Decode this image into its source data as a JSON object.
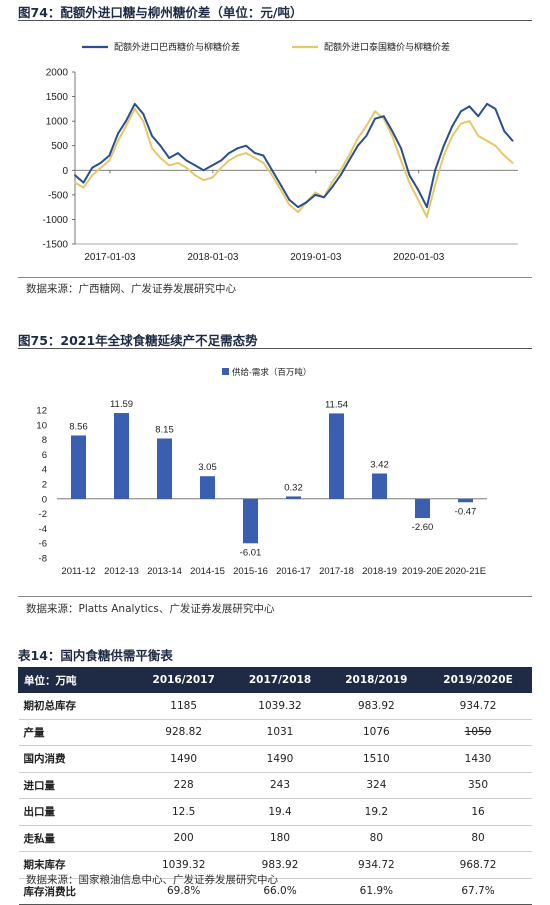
{
  "fig74": {
    "title": "图74：配额外进口糖与柳州糖价差（单位：元/吨）",
    "source": "数据来源：广西糖网、广发证券发展研究中心"
  },
  "fig75": {
    "title": "图75：2021年全球食糖延续产不足需态势",
    "source": "数据来源：Platts Analytics、广发证券发展研究中心"
  },
  "table14": {
    "title": "表14：国内食糖供需平衡表",
    "source": "数据来源：国家粮油信息中心、广发证券发展研究中心",
    "unit_label": "单位：万吨",
    "columns": [
      "2016/2017",
      "2017/2018",
      "2018/2019",
      "2019/2020E"
    ],
    "rows": [
      {
        "label": "期初总库存",
        "values": [
          "1185",
          "1039.32",
          "983.92",
          "934.72"
        ]
      },
      {
        "label": "产量",
        "values": [
          "928.82",
          "1031",
          "1076",
          "1050"
        ]
      },
      {
        "label": "国内消费",
        "values": [
          "1490",
          "1490",
          "1510",
          "1430"
        ]
      },
      {
        "label": "进口量",
        "values": [
          "228",
          "243",
          "324",
          "350"
        ]
      },
      {
        "label": "出口量",
        "values": [
          "12.5",
          "19.4",
          "19.2",
          "16"
        ]
      },
      {
        "label": "走私量",
        "values": [
          "200",
          "180",
          "80",
          "80"
        ]
      },
      {
        "label": "期末库存",
        "values": [
          "1039.32",
          "983.92",
          "934.72",
          "968.72"
        ]
      },
      {
        "label": "库存消费比",
        "values": [
          "69.8%",
          "66.0%",
          "61.9%",
          "67.7%"
        ]
      }
    ]
  },
  "chart_data": [
    {
      "type": "line",
      "x_ticks": [
        "2017-01-03",
        "2018-01-03",
        "2019-01-03",
        "2020-01-03"
      ],
      "ylim": [
        -1500,
        2000
      ],
      "y_ticks": [
        -1500,
        -1000,
        -500,
        0,
        500,
        1000,
        1500,
        2000
      ],
      "legend_position": "top",
      "series": [
        {
          "name": "配额外进口巴西糖价与柳糖价差",
          "color": "#2b4f8e",
          "points": [
            [
              "2016-09-01",
              -100
            ],
            [
              "2016-10-01",
              -250
            ],
            [
              "2016-11-01",
              50
            ],
            [
              "2016-12-01",
              150
            ],
            [
              "2017-01-01",
              300
            ],
            [
              "2017-02-01",
              750
            ],
            [
              "2017-03-01",
              1000
            ],
            [
              "2017-04-01",
              1350
            ],
            [
              "2017-05-01",
              1150
            ],
            [
              "2017-06-01",
              700
            ],
            [
              "2017-07-01",
              500
            ],
            [
              "2017-08-01",
              250
            ],
            [
              "2017-09-01",
              350
            ],
            [
              "2017-10-01",
              200
            ],
            [
              "2017-11-01",
              100
            ],
            [
              "2017-12-01",
              0
            ],
            [
              "2018-01-01",
              100
            ],
            [
              "2018-02-01",
              200
            ],
            [
              "2018-03-01",
              350
            ],
            [
              "2018-04-01",
              450
            ],
            [
              "2018-05-01",
              500
            ],
            [
              "2018-06-01",
              350
            ],
            [
              "2018-07-01",
              300
            ],
            [
              "2018-08-01",
              0
            ],
            [
              "2018-09-01",
              -300
            ],
            [
              "2018-10-01",
              -600
            ],
            [
              "2018-11-01",
              -750
            ],
            [
              "2018-12-01",
              -650
            ],
            [
              "2019-01-01",
              -500
            ],
            [
              "2019-02-01",
              -550
            ],
            [
              "2019-03-01",
              -350
            ],
            [
              "2019-04-01",
              -100
            ],
            [
              "2019-05-01",
              200
            ],
            [
              "2019-06-01",
              500
            ],
            [
              "2019-07-01",
              700
            ],
            [
              "2019-08-01",
              1050
            ],
            [
              "2019-09-01",
              1100
            ],
            [
              "2019-10-01",
              800
            ],
            [
              "2019-11-01",
              450
            ],
            [
              "2019-12-01",
              -100
            ],
            [
              "2020-01-01",
              -400
            ],
            [
              "2020-02-01",
              -750
            ],
            [
              "2020-03-01",
              0
            ],
            [
              "2020-04-01",
              500
            ],
            [
              "2020-05-01",
              900
            ],
            [
              "2020-06-01",
              1200
            ],
            [
              "2020-07-01",
              1300
            ],
            [
              "2020-08-01",
              1100
            ],
            [
              "2020-09-01",
              1350
            ],
            [
              "2020-10-01",
              1250
            ],
            [
              "2020-11-01",
              800
            ],
            [
              "2020-12-01",
              600
            ]
          ]
        },
        {
          "name": "配额外进口泰国糖价与柳糖价差",
          "color": "#e4c86a",
          "points": [
            [
              "2016-09-01",
              -250
            ],
            [
              "2016-10-01",
              -350
            ],
            [
              "2016-11-01",
              -100
            ],
            [
              "2016-12-01",
              50
            ],
            [
              "2017-01-01",
              200
            ],
            [
              "2017-02-01",
              600
            ],
            [
              "2017-03-01",
              900
            ],
            [
              "2017-04-01",
              1250
            ],
            [
              "2017-05-01",
              1000
            ],
            [
              "2017-06-01",
              450
            ],
            [
              "2017-07-01",
              250
            ],
            [
              "2017-08-01",
              100
            ],
            [
              "2017-09-01",
              150
            ],
            [
              "2017-10-01",
              50
            ],
            [
              "2017-11-01",
              -100
            ],
            [
              "2017-12-01",
              -200
            ],
            [
              "2018-01-01",
              -150
            ],
            [
              "2018-02-01",
              50
            ],
            [
              "2018-03-01",
              200
            ],
            [
              "2018-04-01",
              300
            ],
            [
              "2018-05-01",
              350
            ],
            [
              "2018-06-01",
              250
            ],
            [
              "2018-07-01",
              150
            ],
            [
              "2018-08-01",
              -100
            ],
            [
              "2018-09-01",
              -400
            ],
            [
              "2018-10-01",
              -700
            ],
            [
              "2018-11-01",
              -850
            ],
            [
              "2018-12-01",
              -650
            ],
            [
              "2019-01-01",
              -450
            ],
            [
              "2019-02-01",
              -550
            ],
            [
              "2019-03-01",
              -250
            ],
            [
              "2019-04-01",
              0
            ],
            [
              "2019-05-01",
              300
            ],
            [
              "2019-06-01",
              650
            ],
            [
              "2019-07-01",
              900
            ],
            [
              "2019-08-01",
              1200
            ],
            [
              "2019-09-01",
              1050
            ],
            [
              "2019-10-01",
              700
            ],
            [
              "2019-11-01",
              200
            ],
            [
              "2019-12-01",
              -250
            ],
            [
              "2020-01-01",
              -600
            ],
            [
              "2020-02-01",
              -950
            ],
            [
              "2020-03-01",
              -300
            ],
            [
              "2020-04-01",
              300
            ],
            [
              "2020-05-01",
              700
            ],
            [
              "2020-06-01",
              950
            ],
            [
              "2020-07-01",
              1000
            ],
            [
              "2020-08-01",
              700
            ],
            [
              "2020-09-01",
              600
            ],
            [
              "2020-10-01",
              500
            ],
            [
              "2020-11-01",
              300
            ],
            [
              "2020-12-01",
              150
            ]
          ]
        }
      ]
    },
    {
      "type": "bar",
      "categories": [
        "2011-12",
        "2012-13",
        "2013-14",
        "2014-15",
        "2015-16",
        "2016-17",
        "2017-18",
        "2018-19",
        "2019-20E",
        "2020-21E"
      ],
      "series": [
        {
          "name": "供给-需求（百万吨）",
          "color": "#3a5fb0",
          "values": [
            8.56,
            11.59,
            8.15,
            3.05,
            -6.01,
            0.32,
            11.54,
            3.42,
            -2.6,
            -0.47
          ]
        }
      ],
      "value_labels": [
        "8.56",
        "11.59",
        "8.15",
        "3.05",
        "-6.01",
        "0.32",
        "11.54",
        "3.42",
        "-2.60",
        "-0.47"
      ],
      "ylim": [
        -8,
        12
      ],
      "y_ticks": [
        -8,
        -6,
        -4,
        -2,
        0,
        2,
        4,
        6,
        8,
        10,
        12
      ],
      "legend_position": "top"
    }
  ]
}
